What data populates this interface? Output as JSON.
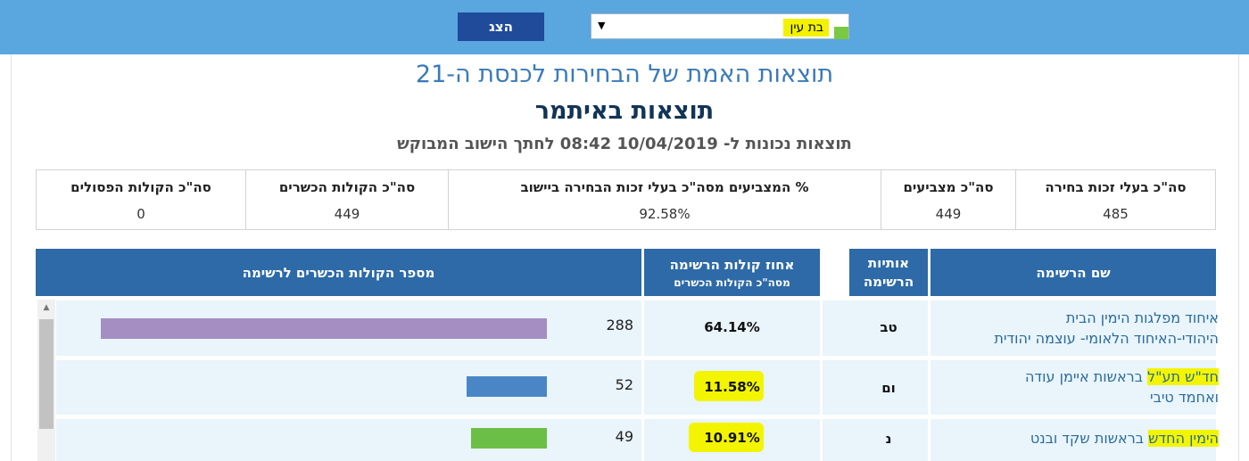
{
  "toolbar": {
    "show_button": "הצג",
    "selected_settlement": "בת עין"
  },
  "header": {
    "title": "תוצאות האמת של הבחירות לכנסת ה-21",
    "subtitle": "תוצאות באיתמר",
    "timestamp_line": "תוצאות נכונות ל- 10/04/2019 08:42 לחתך הישוב המבוקש"
  },
  "summary": {
    "columns": [
      {
        "label": "סה\"כ בעלי זכות בחירה",
        "value": "485"
      },
      {
        "label": "סה\"כ מצביעים",
        "value": "449"
      },
      {
        "label": "% המצביעים מסה\"כ בעלי זכות הבחירה ביישוב",
        "value": "92.58%"
      },
      {
        "label": "סה\"כ הקולות הכשרים",
        "value": "449"
      },
      {
        "label": "סה\"כ הקולות הפסולים",
        "value": "0"
      }
    ]
  },
  "table": {
    "headers": {
      "name": "שם הרשימה",
      "letters_line1": "אותיות",
      "letters_line2": "הרשימה",
      "pct": "אחוז קולות הרשימה",
      "pct_sub": "מסה\"כ הקולות הכשרים",
      "votes": "מספר הקולות הכשרים לרשימה"
    },
    "rows": [
      {
        "name_line1": "איחוד מפלגות הימין הבית",
        "name_line2": "היהודי-האיחוד הלאומי- עוצמה יהודית",
        "letters": "טב",
        "pct": "64.14%",
        "votes": 288,
        "bar_color": "#a48ec2"
      },
      {
        "name_hl": "חד\"ש תע\"ל",
        "name_line1_rest": " בראשות איימן עודה",
        "name_line2": "ואחמד טיבי",
        "letters": "ום",
        "pct": "11.58%",
        "votes": 52,
        "bar_color": "#4a86c6"
      },
      {
        "name_hl": "הימין החדש",
        "name_line1_rest": " בראשות שקד ובנט",
        "letters": "נ",
        "pct": "10.91%",
        "votes": 49,
        "bar_color": "#6bbf46"
      }
    ],
    "max_votes_scale": 288
  },
  "colors": {
    "topbar": "#5aa6df",
    "header_bg": "#2d6aa7",
    "highlight": "#f3f500",
    "row_bg": "#e9f4fb"
  }
}
